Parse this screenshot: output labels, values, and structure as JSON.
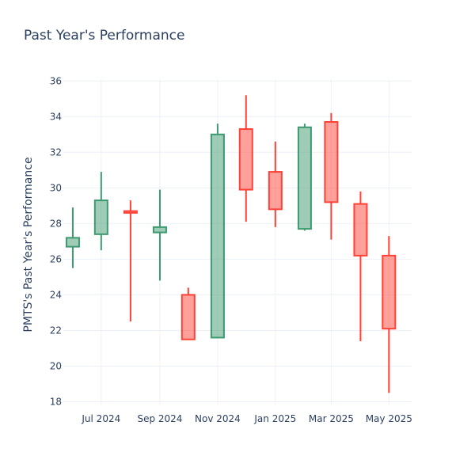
{
  "chart_data": {
    "type": "candlestick",
    "title": "Past Year's Performance",
    "xlabel": "",
    "ylabel": "PMTS's Past Year's Performance",
    "ylim": [
      17.8,
      36.1
    ],
    "y_ticks": [
      18,
      20,
      22,
      24,
      26,
      28,
      30,
      32,
      34,
      36
    ],
    "x_range": [
      "2024-05-22",
      "2025-05-25"
    ],
    "x_ticks": [
      {
        "date": "2024-07-01",
        "label": "Jul 2024"
      },
      {
        "date": "2024-09-01",
        "label": "Sep 2024"
      },
      {
        "date": "2024-11-01",
        "label": "Nov 2024"
      },
      {
        "date": "2025-01-01",
        "label": "Jan 2025"
      },
      {
        "date": "2025-03-01",
        "label": "Mar 2025"
      },
      {
        "date": "2025-05-01",
        "label": "May 2025"
      }
    ],
    "colors": {
      "increasing_line": "#3d9970",
      "increasing_fill": "rgba(61,153,112,0.5)",
      "decreasing_line": "#ff4136",
      "decreasing_fill": "rgba(255,65,54,0.5)"
    },
    "candles": [
      {
        "date": "2024-06-01",
        "open": 26.7,
        "high": 28.9,
        "low": 25.5,
        "close": 27.2
      },
      {
        "date": "2024-07-01",
        "open": 27.4,
        "high": 30.9,
        "low": 26.5,
        "close": 29.3
      },
      {
        "date": "2024-08-01",
        "open": 28.7,
        "high": 29.3,
        "low": 22.5,
        "close": 28.6
      },
      {
        "date": "2024-09-01",
        "open": 27.5,
        "high": 29.9,
        "low": 24.8,
        "close": 27.8
      },
      {
        "date": "2024-10-01",
        "open": 24.0,
        "high": 24.4,
        "low": 21.5,
        "close": 21.5
      },
      {
        "date": "2024-11-01",
        "open": 21.6,
        "high": 33.6,
        "low": 21.6,
        "close": 33.0
      },
      {
        "date": "2024-12-01",
        "open": 33.3,
        "high": 35.2,
        "low": 28.1,
        "close": 29.9
      },
      {
        "date": "2025-01-01",
        "open": 30.9,
        "high": 32.6,
        "low": 27.8,
        "close": 28.8
      },
      {
        "date": "2025-02-01",
        "open": 27.7,
        "high": 33.6,
        "low": 27.6,
        "close": 33.4
      },
      {
        "date": "2025-03-01",
        "open": 33.7,
        "high": 34.2,
        "low": 27.1,
        "close": 29.2
      },
      {
        "date": "2025-04-01",
        "open": 29.1,
        "high": 29.8,
        "low": 21.4,
        "close": 26.2
      },
      {
        "date": "2025-05-01",
        "open": 26.2,
        "high": 27.3,
        "low": 18.5,
        "close": 22.1
      }
    ]
  }
}
